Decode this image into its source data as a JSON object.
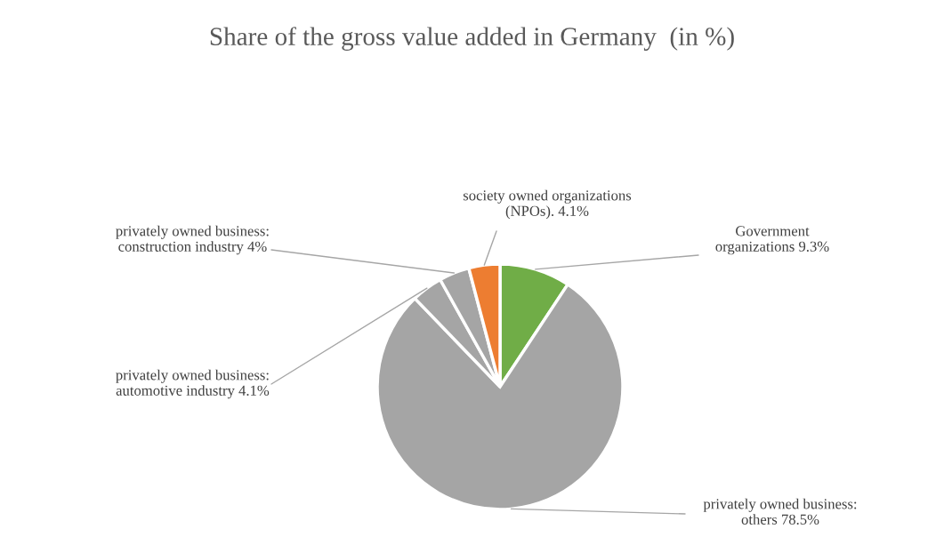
{
  "chart_data": {
    "type": "pie",
    "title": "Share of the gross value added in Germany  (in %)",
    "categories": [
      "Government\norganizations",
      "privately owned business:\nothers",
      "privately owned business:\nautomotive industry",
      "privately owned business:\nconstruction industry",
      "society owned organizations\n(NPOs)."
    ],
    "values": [
      9.3,
      78.5,
      4.1,
      4,
      4.1
    ],
    "value_labels": [
      "9.3%",
      "78.5%",
      "4.1%",
      "4%",
      "4.1%"
    ],
    "colors": [
      "#70ad47",
      "#a5a5a5",
      "#a5a5a5",
      "#a5a5a5",
      "#ed7d31"
    ],
    "legend": false
  }
}
